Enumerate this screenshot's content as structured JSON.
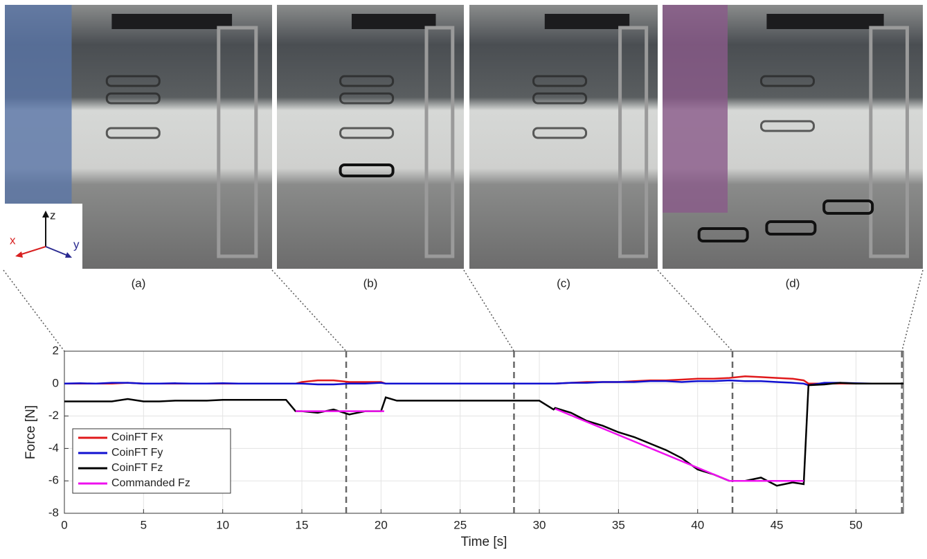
{
  "panels": [
    {
      "label": "(a)"
    },
    {
      "label": "(b)"
    },
    {
      "label": "(c)"
    },
    {
      "label": "(d)"
    }
  ],
  "axes_inset": {
    "x": "x",
    "y": "y",
    "z": "z"
  },
  "chart_data": {
    "type": "line",
    "xlabel": "Time [s]",
    "ylabel": "Force [N]",
    "xlim": [
      0,
      53
    ],
    "ylim": [
      -8,
      2
    ],
    "xticks": [
      0,
      5,
      10,
      15,
      20,
      25,
      30,
      35,
      40,
      45,
      50
    ],
    "yticks": [
      -8,
      -6,
      -4,
      -2,
      0,
      2
    ],
    "grid": true,
    "legend": "lower left",
    "markers": [
      17.8,
      28.4,
      42.2,
      52.9
    ],
    "x": [
      0,
      1,
      2,
      3,
      4,
      5,
      6,
      7,
      8,
      9,
      10,
      11,
      12,
      13,
      14,
      14.6,
      15,
      16,
      17,
      18,
      19,
      20,
      20.3,
      21,
      22,
      23,
      24,
      25,
      26,
      27,
      28,
      29,
      30,
      30.9,
      31,
      32,
      33,
      34,
      35,
      36,
      37,
      38,
      39,
      40,
      41,
      42,
      43,
      44,
      45,
      46,
      46.7,
      47,
      48,
      49,
      50,
      51,
      52,
      53
    ],
    "series": [
      {
        "name": "CoinFT Fx",
        "color": "#e0191b",
        "values": [
          0,
          0,
          0,
          0,
          0.05,
          0,
          0,
          0,
          0,
          0,
          0,
          0,
          0,
          0,
          0,
          0,
          0.1,
          0.2,
          0.2,
          0.1,
          0.1,
          0.1,
          0,
          0,
          0,
          0,
          0,
          0,
          0,
          0,
          0,
          0,
          0,
          0,
          0,
          0.05,
          0.1,
          0.1,
          0.1,
          0.15,
          0.2,
          0.2,
          0.25,
          0.3,
          0.3,
          0.35,
          0.45,
          0.4,
          0.35,
          0.3,
          0.2,
          0,
          0,
          0,
          0,
          0,
          0,
          0
        ]
      },
      {
        "name": "CoinFT Fy",
        "color": "#1010d0",
        "values": [
          0,
          0.02,
          0,
          0.05,
          0.05,
          0,
          0,
          0.02,
          0,
          0,
          0.02,
          0,
          0,
          0,
          0,
          0,
          0,
          -0.05,
          -0.05,
          0,
          0,
          0.05,
          0,
          0,
          0,
          0,
          0,
          0,
          0,
          0,
          0,
          0,
          0,
          0,
          0,
          0.05,
          0.05,
          0.1,
          0.1,
          0.1,
          0.15,
          0.15,
          0.1,
          0.15,
          0.15,
          0.2,
          0.15,
          0.15,
          0.1,
          0.05,
          0,
          -0.1,
          0.05,
          0.05,
          0.02,
          0,
          0,
          0
        ]
      },
      {
        "name": "CoinFT Fz",
        "color": "#000000",
        "values": [
          -1.1,
          -1.1,
          -1.1,
          -1.1,
          -0.95,
          -1.1,
          -1.1,
          -1.05,
          -1.05,
          -1.05,
          -1.0,
          -1.0,
          -1.0,
          -1.0,
          -1.0,
          -1.7,
          -1.7,
          -1.8,
          -1.6,
          -1.9,
          -1.7,
          -1.7,
          -0.85,
          -1.05,
          -1.05,
          -1.05,
          -1.05,
          -1.05,
          -1.05,
          -1.05,
          -1.05,
          -1.05,
          -1.05,
          -1.6,
          -1.5,
          -1.8,
          -2.3,
          -2.6,
          -3.0,
          -3.3,
          -3.7,
          -4.1,
          -4.6,
          -5.3,
          -5.6,
          -6.0,
          -6.0,
          -5.8,
          -6.3,
          -6.1,
          -6.2,
          -0.1,
          -0.05,
          0.05,
          0,
          0,
          0,
          0
        ]
      },
      {
        "name": "Commanded Fz",
        "color": "#ee10ee",
        "x": [
          14.6,
          20.2,
          null,
          31,
          42,
          46.7
        ],
        "values": [
          -1.7,
          -1.7,
          null,
          -1.55,
          -6,
          -6
        ]
      }
    ]
  }
}
